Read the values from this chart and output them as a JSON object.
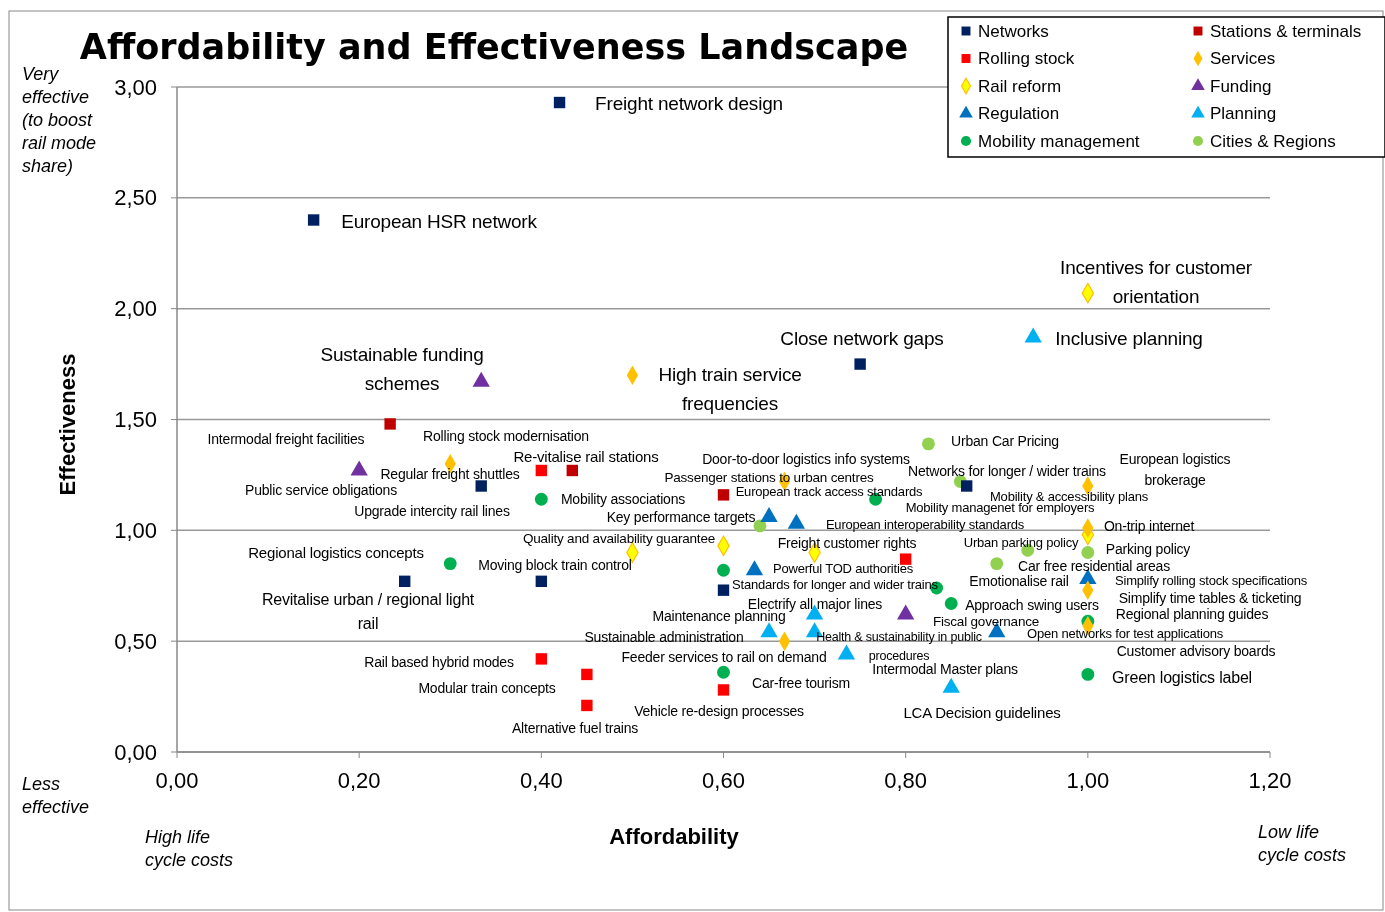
{
  "chart_data": {
    "type": "scatter",
    "title": "Affordability and Effectiveness Landscape",
    "xlabel": "Affordability",
    "ylabel": "Effectiveness",
    "xlim": [
      0,
      1.2
    ],
    "ylim": [
      0,
      3
    ],
    "xticks": [
      {
        "value": 0,
        "label": "0,00"
      },
      {
        "value": 0.2,
        "label": "0,20"
      },
      {
        "value": 0.4,
        "label": "0,40"
      },
      {
        "value": 0.6,
        "label": "0,60"
      },
      {
        "value": 0.8,
        "label": "0,80"
      },
      {
        "value": 1,
        "label": "1,00"
      },
      {
        "value": 1.2,
        "label": "1,20"
      }
    ],
    "yticks": [
      {
        "value": 0,
        "label": "0,00"
      },
      {
        "value": 0.5,
        "label": "0,50"
      },
      {
        "value": 1,
        "label": "1,00"
      },
      {
        "value": 1.5,
        "label": "1,50"
      },
      {
        "value": 2,
        "label": "2,00"
      },
      {
        "value": 2.5,
        "label": "2,50"
      },
      {
        "value": 3,
        "label": "3,00"
      }
    ],
    "grid": "y",
    "legend": "top right",
    "series": [
      {
        "name": "Networks",
        "color": "#002060",
        "marker": "square",
        "x": [
          0.42,
          0.15,
          0.75,
          0.334,
          0.25,
          0.4,
          0.6,
          0.867
        ],
        "values": [
          2.93,
          2.4,
          1.75,
          1.2,
          0.77,
          0.77,
          0.73,
          1.2
        ]
      },
      {
        "name": "Stations & terminals",
        "color": "#c00000",
        "marker": "square",
        "x": [
          0.234,
          0.434,
          0.6
        ],
        "values": [
          1.48,
          1.27,
          1.16
        ]
      },
      {
        "name": "Rolling stock",
        "color": "#ff0000",
        "marker": "square",
        "x": [
          0.4,
          0.8,
          0.4,
          0.45,
          0.45,
          0.6
        ],
        "values": [
          1.27,
          0.87,
          0.42,
          0.35,
          0.21,
          0.28
        ]
      },
      {
        "name": "Services",
        "color": "#ffc000",
        "marker": "diamond",
        "x": [
          0.3,
          0.5,
          0.667,
          0.667,
          1,
          1,
          1,
          1
        ],
        "values": [
          1.3,
          1.7,
          1.22,
          0.5,
          1.2,
          1.01,
          0.73,
          0.57
        ]
      },
      {
        "name": "Rail reform",
        "color": "#ffff00",
        "marker": "diamond",
        "x": [
          1,
          0.5,
          0.6,
          0.7,
          1
        ],
        "values": [
          2.07,
          0.9,
          0.93,
          0.9,
          0.98
        ]
      },
      {
        "name": "Funding",
        "color": "#7030a0",
        "marker": "triangle",
        "x": [
          0.334,
          0.2,
          0.8
        ],
        "values": [
          1.67,
          1.27,
          0.62
        ]
      },
      {
        "name": "Regulation",
        "color": "#0070c0",
        "marker": "triangle",
        "x": [
          0.65,
          0.68,
          0.634,
          1,
          0.9
        ],
        "values": [
          1.06,
          1.03,
          0.82,
          0.78,
          0.54
        ]
      },
      {
        "name": "Planning",
        "color": "#00b0f0",
        "marker": "triangle",
        "x": [
          0.94,
          0.7,
          0.65,
          0.7,
          0.735,
          0.85
        ],
        "values": [
          1.87,
          0.62,
          0.54,
          0.54,
          0.44,
          0.29
        ]
      },
      {
        "name": "Mobility management",
        "color": "#00b050",
        "marker": "circle",
        "x": [
          0.4,
          0.3,
          0.767,
          0.6,
          0.834,
          0.85,
          1,
          0.6,
          1
        ],
        "values": [
          1.14,
          0.85,
          1.14,
          0.82,
          0.74,
          0.67,
          0.59,
          0.36,
          0.35
        ]
      },
      {
        "name": "Cities & Regions",
        "color": "#92d050",
        "marker": "circle",
        "x": [
          0.825,
          0.86,
          0.64,
          0.934,
          0.9,
          1
        ],
        "values": [
          1.39,
          1.22,
          1.02,
          0.91,
          0.85,
          0.9
        ]
      }
    ],
    "annotations": [
      "Very effective (to boost rail mode share)",
      "Less effective",
      "High life cycle costs",
      "Low life cycle costs",
      "Freight network design",
      "European HSR network",
      "Incentives for customer\norientation",
      "Close network gaps",
      "Inclusive planning",
      "Sustainable funding\nschemes",
      "High train service\nfrequencies",
      "Intermodal freight facilities",
      "Rolling stock modernisation",
      "Re-vitalise rail stations",
      "Door-to-door logistics info systems",
      "Urban Car Pricing",
      "European logistics\nbrokerage",
      "Regular freight shuttles",
      "Passenger stations to urban centres",
      "Networks for longer / wider trains",
      "Public service obligations",
      "Mobility associations",
      "European track access standards",
      "Mobility & accessibility plans",
      "Mobility managenet for employers",
      "Upgrade intercity rail lines",
      "Key performance targets",
      "European interoperability standards",
      "On-trip internet",
      "Quality and availability guarantee",
      "Freight customer rights",
      "Urban parking policy",
      "Parking policy",
      "Regional logistics concepts",
      "Moving block train control",
      "Powerful TOD authorities",
      "Car free residential areas",
      "Standards for longer and wider trains",
      "Emotionalise rail",
      "Simplify rolling stock specifications",
      "Revitalise urban / regional light\nrail",
      "Electrify all major lines",
      "Approach swing users",
      "Simplify time tables & ticketing",
      "Maintenance planning",
      "Fiscal governance",
      "Regional planning guides",
      "Sustainable administration",
      "Health & sustainability in public\nprocedures",
      "Open networks for test applications",
      "Feeder services to rail on demand",
      "Customer advisory boards",
      "Intermodal Master plans",
      "Rail based hybrid modes",
      "Green logistics label",
      "Modular train concepts",
      "Car-free tourism",
      "Vehicle re-design processes",
      "LCA Decision guidelines",
      "Alternative fuel trains"
    ]
  }
}
